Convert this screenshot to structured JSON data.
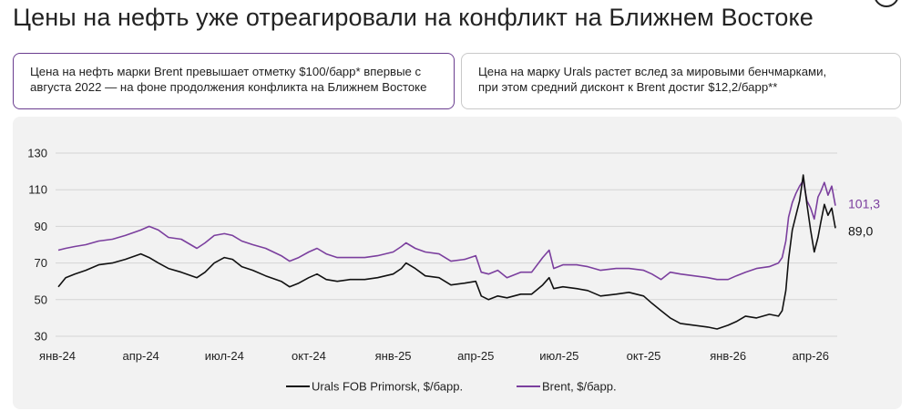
{
  "header": {
    "title": "Цены на нефть уже отреагировали на конфликт на Ближнем Востоке"
  },
  "notes": [
    {
      "lines": [
        "Цена на нефть марки Brent превышает отметку $100/барр* впервые с",
        "августа 2022 — на фоне продолжения конфликта на Ближнем Востоке"
      ]
    },
    {
      "lines": [
        "Цена на марку Urals растет вслед за мировыми бенчмарками,",
        "при этом средний дисконт к Brent достиг $12,2/барр**"
      ]
    }
  ],
  "colors": {
    "urals": "#111111",
    "brent": "#7b3f9e",
    "grid": "#d4d4d4",
    "panel": "#f2f2f2"
  },
  "chart_data": {
    "type": "line",
    "title": "Цены на нефть уже отреагировали на конфликт на Ближнем Востоке",
    "x_range": [
      "2024-01-01",
      "2026-04-30"
    ],
    "ylim": [
      30,
      130
    ],
    "y_ticks": [
      30,
      50,
      70,
      90,
      110,
      130
    ],
    "y_tick_labels": [
      "30",
      "50",
      "70",
      "90",
      "110",
      "130"
    ],
    "x_ticks": [
      "2024-01-01",
      "2024-04-01",
      "2024-07-01",
      "2024-10-01",
      "2025-01-01",
      "2025-04-01",
      "2025-07-01",
      "2025-10-01",
      "2026-01-01",
      "2026-04-01"
    ],
    "x_tick_labels": [
      "янв-24",
      "апр-24",
      "июл-24",
      "окт-24",
      "янв-25",
      "апр-25",
      "июл-25",
      "окт-25",
      "янв-26",
      "апр-26"
    ],
    "grid": true,
    "legend_position": "bottom-center",
    "series": [
      {
        "name": "Urals FOB Primorsk, $/барр.",
        "color": "#111111",
        "end_label": "89,0",
        "points": [
          [
            "2024-01-02",
            57
          ],
          [
            "2024-01-10",
            62
          ],
          [
            "2024-01-20",
            64
          ],
          [
            "2024-02-01",
            66
          ],
          [
            "2024-02-15",
            69
          ],
          [
            "2024-03-01",
            70
          ],
          [
            "2024-03-15",
            72
          ],
          [
            "2024-04-01",
            75
          ],
          [
            "2024-04-10",
            73
          ],
          [
            "2024-04-20",
            70
          ],
          [
            "2024-05-01",
            67
          ],
          [
            "2024-05-15",
            65
          ],
          [
            "2024-06-01",
            62
          ],
          [
            "2024-06-10",
            65
          ],
          [
            "2024-06-20",
            70
          ],
          [
            "2024-07-01",
            73
          ],
          [
            "2024-07-10",
            72
          ],
          [
            "2024-07-20",
            68
          ],
          [
            "2024-08-01",
            66
          ],
          [
            "2024-08-15",
            63
          ],
          [
            "2024-09-01",
            60
          ],
          [
            "2024-09-10",
            57
          ],
          [
            "2024-09-20",
            59
          ],
          [
            "2024-10-01",
            62
          ],
          [
            "2024-10-10",
            64
          ],
          [
            "2024-10-20",
            61
          ],
          [
            "2024-11-01",
            60
          ],
          [
            "2024-11-15",
            61
          ],
          [
            "2024-12-01",
            61
          ],
          [
            "2024-12-15",
            62
          ],
          [
            "2025-01-01",
            64
          ],
          [
            "2025-01-10",
            67
          ],
          [
            "2025-01-15",
            70
          ],
          [
            "2025-01-25",
            67
          ],
          [
            "2025-02-05",
            63
          ],
          [
            "2025-02-20",
            62
          ],
          [
            "2025-03-05",
            58
          ],
          [
            "2025-03-20",
            59
          ],
          [
            "2025-04-01",
            60
          ],
          [
            "2025-04-07",
            52
          ],
          [
            "2025-04-15",
            50
          ],
          [
            "2025-04-25",
            52
          ],
          [
            "2025-05-05",
            51
          ],
          [
            "2025-05-20",
            53
          ],
          [
            "2025-06-01",
            53
          ],
          [
            "2025-06-13",
            58
          ],
          [
            "2025-06-20",
            62
          ],
          [
            "2025-06-25",
            56
          ],
          [
            "2025-07-05",
            57
          ],
          [
            "2025-07-20",
            56
          ],
          [
            "2025-08-01",
            55
          ],
          [
            "2025-08-15",
            52
          ],
          [
            "2025-09-01",
            53
          ],
          [
            "2025-09-15",
            54
          ],
          [
            "2025-10-01",
            52
          ],
          [
            "2025-10-10",
            48
          ],
          [
            "2025-10-20",
            44
          ],
          [
            "2025-10-30",
            40
          ],
          [
            "2025-11-10",
            37
          ],
          [
            "2025-11-25",
            36
          ],
          [
            "2025-12-10",
            35
          ],
          [
            "2025-12-20",
            34
          ],
          [
            "2026-01-01",
            36
          ],
          [
            "2026-01-10",
            38
          ],
          [
            "2026-01-20",
            41
          ],
          [
            "2026-02-01",
            40
          ],
          [
            "2026-02-15",
            42
          ],
          [
            "2026-02-25",
            41
          ],
          [
            "2026-03-01",
            44
          ],
          [
            "2026-03-05",
            55
          ],
          [
            "2026-03-08",
            72
          ],
          [
            "2026-03-12",
            88
          ],
          [
            "2026-03-16",
            96
          ],
          [
            "2026-03-20",
            104
          ],
          [
            "2026-03-24",
            118
          ],
          [
            "2026-03-28",
            102
          ],
          [
            "2026-04-01",
            88
          ],
          [
            "2026-04-05",
            76
          ],
          [
            "2026-04-09",
            84
          ],
          [
            "2026-04-12",
            92
          ],
          [
            "2026-04-16",
            102
          ],
          [
            "2026-04-20",
            96
          ],
          [
            "2026-04-24",
            100
          ],
          [
            "2026-04-28",
            89
          ]
        ]
      },
      {
        "name": "Brent, $/барр.",
        "color": "#7b3f9e",
        "end_label": "101,3",
        "points": [
          [
            "2024-01-02",
            77
          ],
          [
            "2024-01-10",
            78
          ],
          [
            "2024-01-20",
            79
          ],
          [
            "2024-02-01",
            80
          ],
          [
            "2024-02-15",
            82
          ],
          [
            "2024-03-01",
            83
          ],
          [
            "2024-03-15",
            85
          ],
          [
            "2024-04-01",
            88
          ],
          [
            "2024-04-10",
            90
          ],
          [
            "2024-04-20",
            88
          ],
          [
            "2024-05-01",
            84
          ],
          [
            "2024-05-15",
            83
          ],
          [
            "2024-06-01",
            78
          ],
          [
            "2024-06-10",
            81
          ],
          [
            "2024-06-20",
            85
          ],
          [
            "2024-07-01",
            86
          ],
          [
            "2024-07-10",
            85
          ],
          [
            "2024-07-20",
            82
          ],
          [
            "2024-08-01",
            80
          ],
          [
            "2024-08-15",
            78
          ],
          [
            "2024-09-01",
            74
          ],
          [
            "2024-09-10",
            71
          ],
          [
            "2024-09-20",
            73
          ],
          [
            "2024-10-01",
            76
          ],
          [
            "2024-10-10",
            78
          ],
          [
            "2024-10-20",
            75
          ],
          [
            "2024-11-01",
            73
          ],
          [
            "2024-11-15",
            73
          ],
          [
            "2024-12-01",
            73
          ],
          [
            "2024-12-15",
            74
          ],
          [
            "2025-01-01",
            76
          ],
          [
            "2025-01-10",
            79
          ],
          [
            "2025-01-15",
            81
          ],
          [
            "2025-01-25",
            78
          ],
          [
            "2025-02-05",
            76
          ],
          [
            "2025-02-20",
            75
          ],
          [
            "2025-03-05",
            71
          ],
          [
            "2025-03-20",
            72
          ],
          [
            "2025-04-01",
            74
          ],
          [
            "2025-04-07",
            65
          ],
          [
            "2025-04-15",
            64
          ],
          [
            "2025-04-25",
            66
          ],
          [
            "2025-05-05",
            62
          ],
          [
            "2025-05-20",
            65
          ],
          [
            "2025-06-01",
            65
          ],
          [
            "2025-06-13",
            73
          ],
          [
            "2025-06-20",
            77
          ],
          [
            "2025-06-25",
            67
          ],
          [
            "2025-07-05",
            69
          ],
          [
            "2025-07-20",
            69
          ],
          [
            "2025-08-01",
            68
          ],
          [
            "2025-08-15",
            66
          ],
          [
            "2025-09-01",
            67
          ],
          [
            "2025-09-15",
            67
          ],
          [
            "2025-10-01",
            66
          ],
          [
            "2025-10-10",
            64
          ],
          [
            "2025-10-20",
            61
          ],
          [
            "2025-10-30",
            65
          ],
          [
            "2025-11-10",
            64
          ],
          [
            "2025-11-25",
            63
          ],
          [
            "2025-12-10",
            62
          ],
          [
            "2025-12-20",
            61
          ],
          [
            "2026-01-01",
            61
          ],
          [
            "2026-01-10",
            63
          ],
          [
            "2026-01-20",
            65
          ],
          [
            "2026-02-01",
            67
          ],
          [
            "2026-02-15",
            68
          ],
          [
            "2026-02-25",
            70
          ],
          [
            "2026-03-01",
            73
          ],
          [
            "2026-03-05",
            82
          ],
          [
            "2026-03-08",
            95
          ],
          [
            "2026-03-12",
            103
          ],
          [
            "2026-03-16",
            108
          ],
          [
            "2026-03-20",
            112
          ],
          [
            "2026-03-24",
            115
          ],
          [
            "2026-03-28",
            104
          ],
          [
            "2026-04-01",
            100
          ],
          [
            "2026-04-05",
            94
          ],
          [
            "2026-04-09",
            106
          ],
          [
            "2026-04-12",
            109
          ],
          [
            "2026-04-16",
            114
          ],
          [
            "2026-04-20",
            107
          ],
          [
            "2026-04-24",
            112
          ],
          [
            "2026-04-28",
            101.3
          ]
        ]
      }
    ]
  }
}
